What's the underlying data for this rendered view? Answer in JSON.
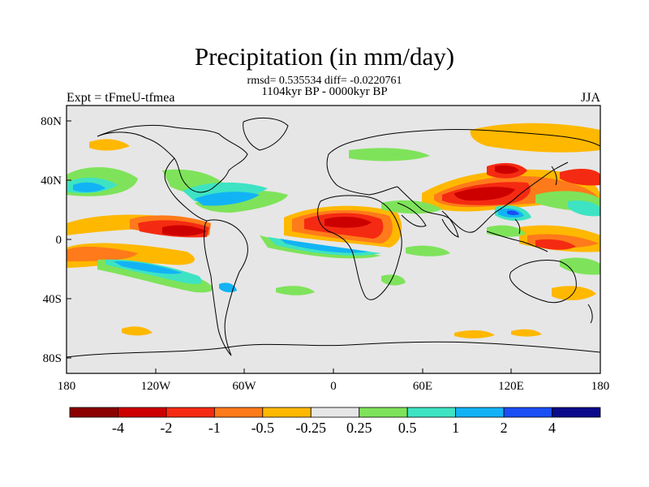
{
  "title": "Precipitation (in mm/day)",
  "stats_line": "rmsd= 0.535534 diff= -0.0220761",
  "period_line": "1104kyr BP - 0000kyr BP",
  "experiment_label": "Expt = tFmeU-tfmea",
  "season_label": "JJA",
  "map": {
    "lon_ticks": [
      "180",
      "120W",
      "60W",
      "0",
      "60E",
      "120E",
      "180"
    ],
    "lat_ticks": [
      "80N",
      "40N",
      "0",
      "40S",
      "80S"
    ],
    "background_color": "#e6e6e6"
  },
  "colorbar": {
    "colors": [
      "#8b0000",
      "#cd0000",
      "#f52a12",
      "#ff7a1a",
      "#ffb800",
      "#e6e6e6",
      "#7ee35a",
      "#3de3c3",
      "#12b3f5",
      "#1a4ef5",
      "#0a0a8b"
    ],
    "labels": [
      "-4",
      "-2",
      "-1",
      "-0.5",
      "-0.25",
      "0.25",
      "0.5",
      "1",
      "2",
      "4"
    ]
  }
}
